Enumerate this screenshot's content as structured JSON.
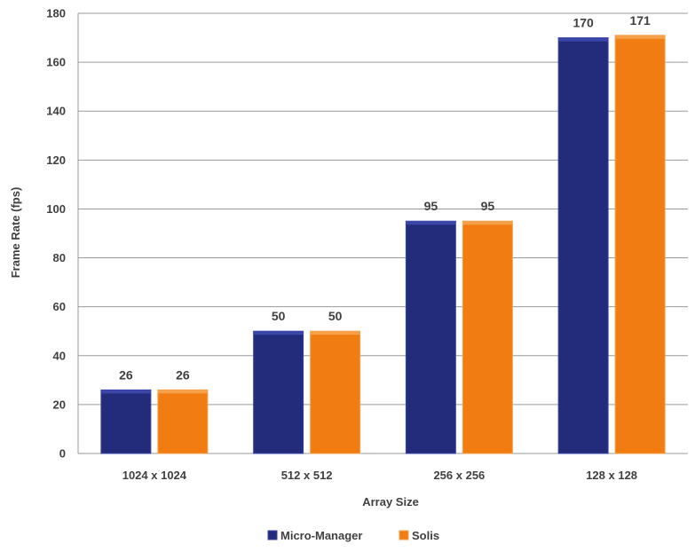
{
  "chart_data": {
    "type": "bar",
    "title": "",
    "xlabel": "Array Size",
    "ylabel": "Frame Rate (fps)",
    "ylim": [
      0,
      180
    ],
    "ytick_step": 20,
    "grid": true,
    "legend_position": "bottom",
    "categories": [
      "1024 x 1024",
      "512 x 512",
      "256 x 256",
      "128 x 128"
    ],
    "series": [
      {
        "name": "Micro-Manager",
        "values": [
          26,
          50,
          95,
          170
        ],
        "color": "#232C7A",
        "top_color": "#3A46A8"
      },
      {
        "name": "Solis",
        "values": [
          26,
          50,
          95,
          171
        ],
        "color": "#F07C12",
        "top_color": "#F6A04A"
      }
    ]
  }
}
